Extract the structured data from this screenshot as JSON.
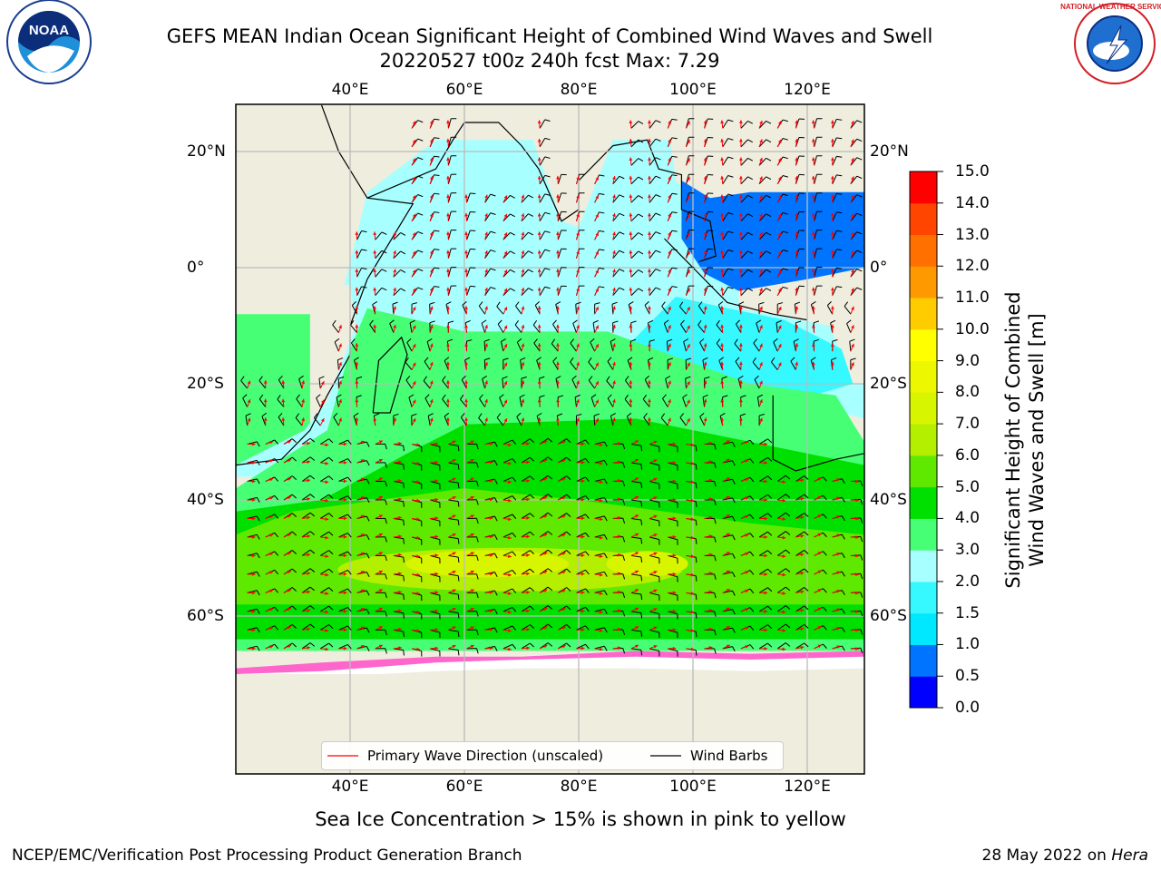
{
  "header": {
    "title_line1": "GEFS MEAN Indian Ocean Significant Height of Combined Wind Waves and Swell",
    "title_line2": "20220527 t00z 240h fcst   Max: 7.29"
  },
  "logos": {
    "left": {
      "icon": "noaa-logo",
      "text": "NOAA"
    },
    "right": {
      "icon": "nws-logo",
      "text": "NATIONAL WEATHER SERVICE"
    }
  },
  "map": {
    "lon_ticks_top": [
      "40°E",
      "60°E",
      "80°E",
      "100°E",
      "120°E"
    ],
    "lon_ticks_bottom": [
      "40°E",
      "60°E",
      "80°E",
      "100°E",
      "120°E"
    ],
    "lat_ticks_left": [
      "20°N",
      "0°",
      "20°S",
      "40°S",
      "60°S"
    ],
    "lat_ticks_right": [
      "20°N",
      "0°",
      "20°S",
      "40°S",
      "60°S"
    ],
    "extent": {
      "lon": [
        20,
        130
      ],
      "lat": [
        -70,
        28
      ]
    }
  },
  "legend": {
    "wave_label": "Primary Wave Direction (unscaled)",
    "barb_label": "Wind Barbs",
    "wave_color": "#ff0000",
    "barb_color": "#000000"
  },
  "colorbar": {
    "label_line1": "Significant Height of Combined",
    "label_line2": "Wind Waves and Swell [m]",
    "ticks": [
      "0.0",
      "0.5",
      "1.0",
      "1.5",
      "2.0",
      "3.0",
      "4.0",
      "5.0",
      "6.0",
      "7.0",
      "8.0",
      "9.0",
      "10.0",
      "11.0",
      "12.0",
      "13.0",
      "14.0",
      "15.0"
    ],
    "colors": [
      "#0000ff",
      "#0074ff",
      "#00e8ff",
      "#36f8ff",
      "#a8ffff",
      "#47ff75",
      "#00e000",
      "#5fe800",
      "#b5ef00",
      "#d8f500",
      "#ecf700",
      "#ffff00",
      "#ffcc00",
      "#ff9900",
      "#ff7000",
      "#ff4500",
      "#ff0000"
    ]
  },
  "annotations": {
    "sea_ice_note": "Sea Ice Concentration > 15% is shown in pink to yellow",
    "credit": "NCEP/EMC/Verification Post Processing Product Generation Branch",
    "date_text": "28 May 2022 on ",
    "host": "Hera"
  }
}
